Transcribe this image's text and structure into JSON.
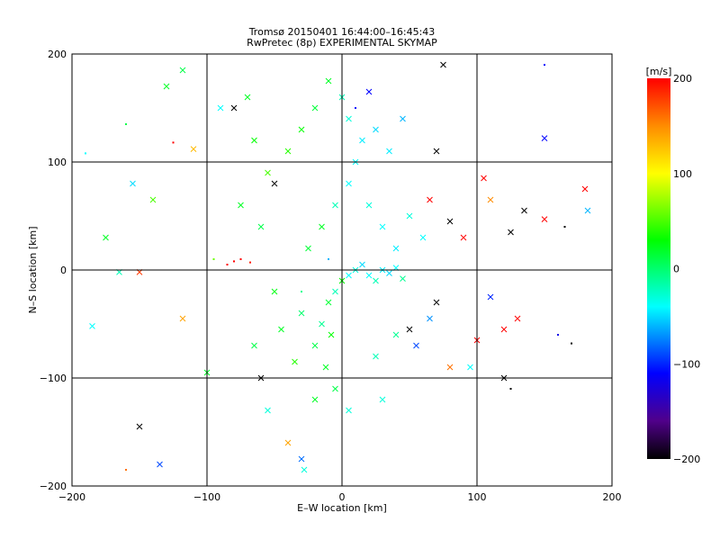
{
  "chart_data": {
    "type": "scatter",
    "title": "Tromsø 20150401 16:44:00–16:45:43",
    "subtitle": "RwPretec (8p) EXPERIMENTAL SKYMAP",
    "xlabel": "E–W location [km]",
    "ylabel": "N–S location [km]",
    "xlim": [
      -200,
      200
    ],
    "ylim": [
      -200,
      200
    ],
    "xticks": [
      "−200",
      "−100",
      "0",
      "100",
      "200"
    ],
    "yticks": [
      "−200",
      "−100",
      "0",
      "100",
      "200"
    ],
    "grid": true,
    "colorbar": {
      "label": "[m/s]",
      "range": [
        -200,
        200
      ],
      "ticks": [
        "200",
        "100",
        "0",
        "−100",
        "−200"
      ],
      "stops": [
        [
          200,
          "#ff0000"
        ],
        [
          150,
          "#ff8c00"
        ],
        [
          100,
          "#ffff00"
        ],
        [
          30,
          "#00ff00"
        ],
        [
          -40,
          "#00ffff"
        ],
        [
          -110,
          "#0000ff"
        ],
        [
          -160,
          "#50008a"
        ],
        [
          -200,
          "#000000"
        ]
      ]
    },
    "marker_note": "x = large cross, d = dot",
    "points": [
      [
        -185,
        -52,
        -40,
        "x"
      ],
      [
        -160,
        135,
        10,
        "d"
      ],
      [
        -150,
        -145,
        -200,
        "x"
      ],
      [
        -135,
        -180,
        -90,
        "x"
      ],
      [
        -160,
        -185,
        160,
        "d"
      ],
      [
        -130,
        170,
        20,
        "x"
      ],
      [
        -118,
        185,
        10,
        "x"
      ],
      [
        -110,
        112,
        130,
        "x"
      ],
      [
        -125,
        118,
        200,
        "d"
      ],
      [
        -140,
        65,
        50,
        "x"
      ],
      [
        -175,
        30,
        20,
        "x"
      ],
      [
        -190,
        108,
        -40,
        "d"
      ],
      [
        -165,
        -2,
        -20,
        "x"
      ],
      [
        -150,
        -2,
        180,
        "x"
      ],
      [
        -118,
        -45,
        140,
        "x"
      ],
      [
        -80,
        8,
        200,
        "d"
      ],
      [
        -75,
        10,
        200,
        "d"
      ],
      [
        -85,
        5,
        200,
        "d"
      ],
      [
        -68,
        7,
        190,
        "d"
      ],
      [
        -95,
        10,
        60,
        "d"
      ],
      [
        -100,
        -95,
        20,
        "x"
      ],
      [
        -60,
        -100,
        -200,
        "x"
      ],
      [
        -55,
        -130,
        -30,
        "x"
      ],
      [
        -40,
        -160,
        140,
        "x"
      ],
      [
        -30,
        -175,
        -80,
        "x"
      ],
      [
        -28,
        -185,
        -30,
        "x"
      ],
      [
        -65,
        -70,
        10,
        "x"
      ],
      [
        -45,
        -55,
        20,
        "x"
      ],
      [
        -30,
        -40,
        0,
        "x"
      ],
      [
        -20,
        -70,
        10,
        "x"
      ],
      [
        -15,
        -50,
        -10,
        "x"
      ],
      [
        -10,
        -30,
        15,
        "x"
      ],
      [
        -5,
        -20,
        -20,
        "x"
      ],
      [
        0,
        -10,
        30,
        "x"
      ],
      [
        5,
        -5,
        -40,
        "x"
      ],
      [
        10,
        0,
        -30,
        "x"
      ],
      [
        15,
        5,
        -50,
        "x"
      ],
      [
        20,
        -5,
        -40,
        "x"
      ],
      [
        25,
        -10,
        -20,
        "x"
      ],
      [
        30,
        0,
        -45,
        "x"
      ],
      [
        35,
        -3,
        -50,
        "x"
      ],
      [
        40,
        2,
        -40,
        "x"
      ],
      [
        45,
        -8,
        -10,
        "x"
      ],
      [
        -8,
        -60,
        30,
        "x"
      ],
      [
        -12,
        -90,
        20,
        "x"
      ],
      [
        -5,
        -110,
        10,
        "x"
      ],
      [
        5,
        -130,
        -30,
        "x"
      ],
      [
        -20,
        -120,
        20,
        "x"
      ],
      [
        -35,
        -85,
        40,
        "x"
      ],
      [
        -50,
        -20,
        25,
        "x"
      ],
      [
        -25,
        20,
        15,
        "x"
      ],
      [
        -15,
        40,
        20,
        "x"
      ],
      [
        -5,
        60,
        -20,
        "x"
      ],
      [
        5,
        80,
        -40,
        "x"
      ],
      [
        10,
        100,
        -40,
        "x"
      ],
      [
        15,
        120,
        -45,
        "x"
      ],
      [
        5,
        140,
        -30,
        "x"
      ],
      [
        0,
        160,
        -20,
        "x"
      ],
      [
        -10,
        175,
        20,
        "x"
      ],
      [
        -20,
        150,
        15,
        "x"
      ],
      [
        -30,
        130,
        30,
        "x"
      ],
      [
        -40,
        110,
        40,
        "x"
      ],
      [
        -55,
        90,
        50,
        "x"
      ],
      [
        -65,
        120,
        30,
        "x"
      ],
      [
        -70,
        160,
        20,
        "x"
      ],
      [
        -90,
        150,
        -40,
        "x"
      ],
      [
        -80,
        150,
        -200,
        "x"
      ],
      [
        -50,
        80,
        -200,
        "x"
      ],
      [
        -60,
        40,
        10,
        "x"
      ],
      [
        -75,
        60,
        20,
        "x"
      ],
      [
        20,
        60,
        -30,
        "x"
      ],
      [
        30,
        40,
        -40,
        "x"
      ],
      [
        40,
        20,
        -45,
        "x"
      ],
      [
        50,
        50,
        -30,
        "x"
      ],
      [
        60,
        30,
        -40,
        "x"
      ],
      [
        25,
        130,
        -50,
        "x"
      ],
      [
        35,
        110,
        -45,
        "x"
      ],
      [
        45,
        140,
        -60,
        "x"
      ],
      [
        20,
        165,
        -110,
        "x"
      ],
      [
        10,
        150,
        -110,
        "d"
      ],
      [
        70,
        110,
        -200,
        "x"
      ],
      [
        75,
        190,
        -200,
        "x"
      ],
      [
        80,
        45,
        -200,
        "x"
      ],
      [
        65,
        65,
        200,
        "x"
      ],
      [
        90,
        30,
        200,
        "x"
      ],
      [
        105,
        85,
        200,
        "x"
      ],
      [
        110,
        65,
        150,
        "x"
      ],
      [
        125,
        35,
        -200,
        "x"
      ],
      [
        135,
        55,
        -200,
        "x"
      ],
      [
        150,
        47,
        200,
        "x"
      ],
      [
        130,
        -45,
        200,
        "x"
      ],
      [
        120,
        -55,
        200,
        "x"
      ],
      [
        100,
        -65,
        200,
        "x"
      ],
      [
        110,
        -25,
        -100,
        "x"
      ],
      [
        70,
        -30,
        -200,
        "x"
      ],
      [
        65,
        -45,
        -70,
        "x"
      ],
      [
        50,
        -55,
        -200,
        "x"
      ],
      [
        55,
        -70,
        -90,
        "x"
      ],
      [
        120,
        -100,
        -200,
        "x"
      ],
      [
        125,
        -110,
        -200,
        "d"
      ],
      [
        150,
        122,
        -110,
        "x"
      ],
      [
        165,
        40,
        -200,
        "d"
      ],
      [
        180,
        75,
        200,
        "x"
      ],
      [
        182,
        55,
        -60,
        "x"
      ],
      [
        170,
        -68,
        -200,
        "d"
      ],
      [
        150,
        190,
        -110,
        "d"
      ],
      [
        160,
        -60,
        -120,
        "d"
      ],
      [
        -155,
        80,
        -50,
        "x"
      ],
      [
        -30,
        -20,
        -10,
        "d"
      ],
      [
        -10,
        10,
        -60,
        "d"
      ],
      [
        25,
        -80,
        -20,
        "x"
      ],
      [
        40,
        -60,
        -10,
        "x"
      ],
      [
        30,
        -120,
        -30,
        "x"
      ],
      [
        80,
        -90,
        160,
        "x"
      ],
      [
        95,
        -90,
        -40,
        "x"
      ]
    ]
  }
}
